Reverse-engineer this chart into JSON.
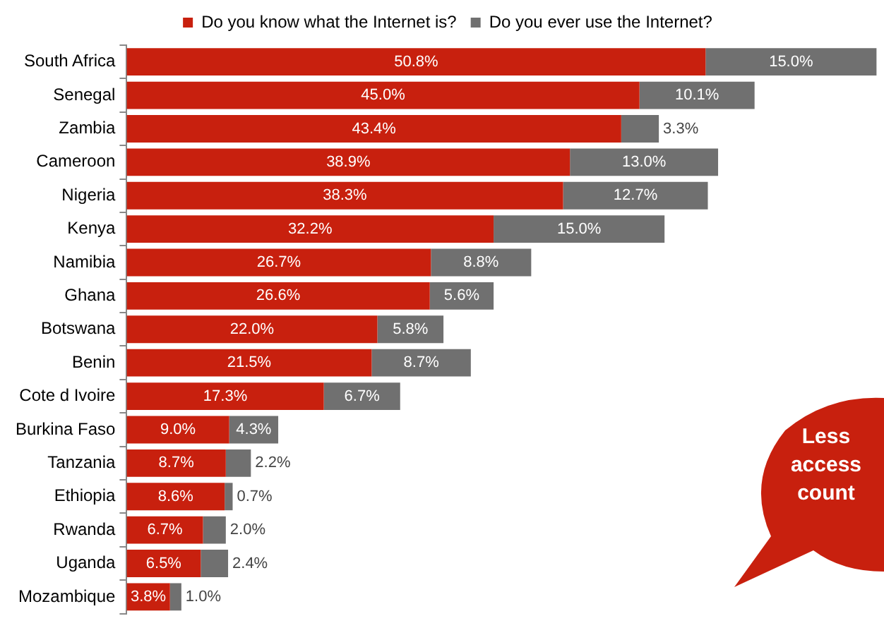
{
  "chart_data": {
    "type": "bar",
    "orientation": "horizontal",
    "stacked": true,
    "legend": "top",
    "grid": false,
    "tick_labels": "y",
    "categories": [
      "South Africa",
      "Senegal",
      "Zambia",
      "Cameroon",
      "Nigeria",
      "Kenya",
      "Namibia",
      "Ghana",
      "Botswana",
      "Benin",
      "Cote d Ivoire",
      "Burkina Faso",
      "Tanzania",
      "Ethiopia",
      "Rwanda",
      "Uganda",
      "Mozambique"
    ],
    "series": [
      {
        "name": "Do you know what the Internet is?",
        "color": "#c8200e",
        "values": [
          50.8,
          45.0,
          43.4,
          38.9,
          38.3,
          32.2,
          26.7,
          26.6,
          22.0,
          21.5,
          17.3,
          9.0,
          8.7,
          8.6,
          6.7,
          6.5,
          3.8
        ],
        "value_labels": [
          "50.8%",
          "45.0%",
          "43.4%",
          "38.9%",
          "38.3%",
          "32.2%",
          "26.7%",
          "26.6%",
          "22.0%",
          "21.5%",
          "17.3%",
          "9.0%",
          "8.7%",
          "8.6%",
          "6.7%",
          "6.5%",
          "3.8%"
        ]
      },
      {
        "name": "Do you ever use the Internet?",
        "color": "#707070",
        "values": [
          15.0,
          10.1,
          3.3,
          13.0,
          12.7,
          15.0,
          8.8,
          5.6,
          5.8,
          8.7,
          6.7,
          4.3,
          2.2,
          0.7,
          2.0,
          2.4,
          1.0
        ],
        "value_labels": [
          "15.0%",
          "10.1%",
          "3.3%",
          "13.0%",
          "12.7%",
          "15.0%",
          "8.8%",
          "5.6%",
          "5.8%",
          "8.7%",
          "6.7%",
          "4.3%",
          "2.2%",
          "0.7%",
          "2.0%",
          "2.4%",
          "1.0%"
        ]
      }
    ],
    "annotations": [
      "Less access count"
    ]
  }
}
